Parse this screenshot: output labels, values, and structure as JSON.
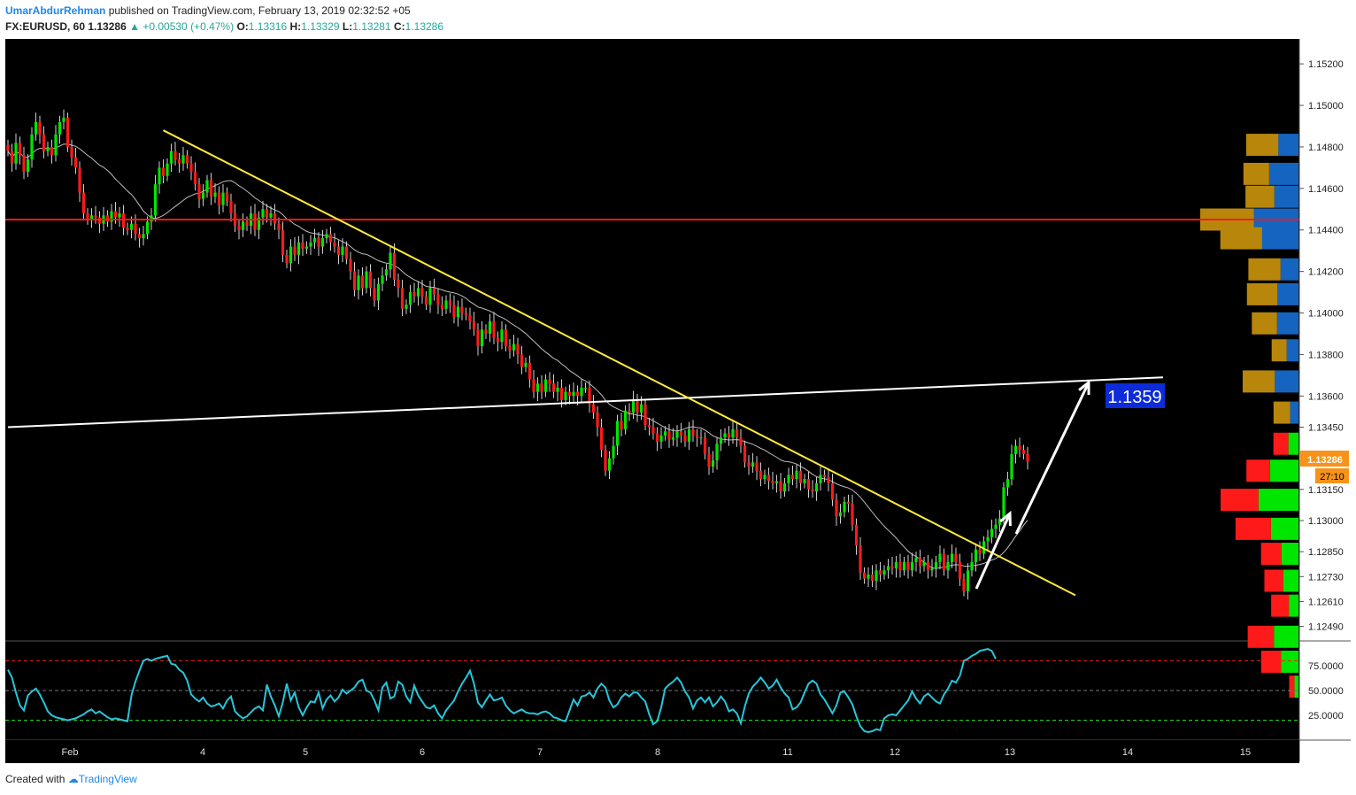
{
  "header": {
    "author": "UmarAbdurRehman",
    "published": "published on TradingView.com, February 13, 2019 02:32:52 +05",
    "symbol": "FX:EURUSD, 60",
    "last": "1.13286",
    "change_arrow": "▲",
    "change": "+0.00530 (+0.47%)",
    "o_label": "O:",
    "o_val": "1.13316",
    "h_label": "H:",
    "h_val": "1.13329",
    "l_label": "L:",
    "l_val": "1.13281",
    "c_label": "C:",
    "c_val": "1.13286"
  },
  "footer": {
    "created": "Created with",
    "brand": "TradingView"
  },
  "colors": {
    "background": "#000000",
    "up": "#00e600",
    "down": "#ff1a1a",
    "trendline": "#ffeb3b",
    "resistance": "#ff1a1a",
    "support_line": "#ffffff",
    "ma": "#bdbdbd",
    "rsi": "#26c6da",
    "vp_up": "#b8860b",
    "vp_down": "#1565c0",
    "last_price_tag": "#f7931a",
    "target_box": "#0d2bd8"
  },
  "annotations": {
    "target_label": "1.1359",
    "last_price_label": "1.13286",
    "countdown_label": "27:10"
  },
  "chart_data": {
    "type": "candlestick",
    "symbol": "FX:EURUSD",
    "interval": "60",
    "x_ticks": [
      "Feb",
      "4",
      "5",
      "6",
      "7",
      "8",
      "11",
      "12",
      "13",
      "14",
      "15"
    ],
    "price_ticks": [
      "1.15200",
      "1.15000",
      "1.14800",
      "1.14600",
      "1.14400",
      "1.14200",
      "1.14000",
      "1.13800",
      "1.13600",
      "1.13450",
      "1.13150",
      "1.13000",
      "1.12850",
      "1.12730",
      "1.12610",
      "1.12490"
    ],
    "price_range": [
      1.1242,
      1.1532
    ],
    "rsi_ticks": [
      "75.0000",
      "50.0000",
      "25.0000"
    ],
    "rsi_range": [
      0,
      100
    ],
    "rsi_levels": [
      80,
      50,
      20
    ],
    "closes": [
      1.1478,
      1.1472,
      1.1482,
      1.1476,
      1.1468,
      1.1474,
      1.1486,
      1.1492,
      1.1486,
      1.1478,
      1.148,
      1.1476,
      1.1486,
      1.1492,
      1.1494,
      1.148,
      1.1475,
      1.147,
      1.1458,
      1.1448,
      1.1445,
      1.1447,
      1.1446,
      1.1443,
      1.1447,
      1.1444,
      1.1449,
      1.1446,
      1.1448,
      1.1441,
      1.144,
      1.1443,
      1.1438,
      1.1436,
      1.1438,
      1.1444,
      1.1447,
      1.1462,
      1.147,
      1.1466,
      1.1472,
      1.1478,
      1.1474,
      1.1472,
      1.1476,
      1.1472,
      1.1468,
      1.1462,
      1.1455,
      1.1458,
      1.1464,
      1.1456,
      1.1458,
      1.1452,
      1.1458,
      1.1454,
      1.1448,
      1.1442,
      1.144,
      1.1444,
      1.1442,
      1.1448,
      1.144,
      1.1446,
      1.145,
      1.1446,
      1.1448,
      1.1443,
      1.144,
      1.1428,
      1.1424,
      1.1432,
      1.1428,
      1.1434,
      1.1431,
      1.1432,
      1.1434,
      1.1436,
      1.1432,
      1.1436,
      1.1438,
      1.1434,
      1.1432,
      1.1428,
      1.1432,
      1.1426,
      1.142,
      1.1411,
      1.1418,
      1.1412,
      1.142,
      1.1412,
      1.1406,
      1.1414,
      1.1418,
      1.1421,
      1.1429,
      1.1416,
      1.1412,
      1.1402,
      1.1404,
      1.141,
      1.1408,
      1.1412,
      1.1408,
      1.1404,
      1.1412,
      1.1409,
      1.1404,
      1.1402,
      1.1406,
      1.1404,
      1.1398,
      1.1403,
      1.14,
      1.1399,
      1.1396,
      1.1392,
      1.1384,
      1.1392,
      1.139,
      1.1396,
      1.1388,
      1.1386,
      1.1392,
      1.1384,
      1.1382,
      1.1385,
      1.138,
      1.1374,
      1.1376,
      1.1368,
      1.1362,
      1.1366,
      1.1362,
      1.1368,
      1.1366,
      1.1362,
      1.1364,
      1.1358,
      1.1362,
      1.136,
      1.1362,
      1.136,
      1.1364,
      1.1364,
      1.1356,
      1.1352,
      1.1345,
      1.1334,
      1.1324,
      1.133,
      1.1336,
      1.1348,
      1.1344,
      1.1353,
      1.1352,
      1.1358,
      1.1352,
      1.1356,
      1.1346,
      1.1345,
      1.1342,
      1.1338,
      1.1341,
      1.1343,
      1.1339,
      1.134,
      1.1343,
      1.1341,
      1.1338,
      1.1344,
      1.1341,
      1.134,
      1.134,
      1.1332,
      1.1326,
      1.1329,
      1.1337,
      1.134,
      1.1342,
      1.134,
      1.1344,
      1.134,
      1.1336,
      1.1328,
      1.1326,
      1.1328,
      1.1324,
      1.132,
      1.1322,
      1.1319,
      1.1318,
      1.1319,
      1.1314,
      1.1318,
      1.1322,
      1.132,
      1.1324,
      1.1318,
      1.132,
      1.1315,
      1.1314,
      1.1318,
      1.1322,
      1.1321,
      1.1318,
      1.131,
      1.1302,
      1.1304,
      1.1309,
      1.1308,
      1.1298,
      1.1288,
      1.1275,
      1.1272,
      1.1274,
      1.1271,
      1.1276,
      1.1274,
      1.1276,
      1.1278,
      1.1277,
      1.128,
      1.1276,
      1.128,
      1.1276,
      1.128,
      1.1282,
      1.1278,
      1.128,
      1.1276,
      1.1277,
      1.128,
      1.1284,
      1.1276,
      1.128,
      1.1284,
      1.128,
      1.1272,
      1.1266,
      1.1276,
      1.128,
      1.1286,
      1.1284,
      1.129,
      1.1292,
      1.1296,
      1.1298,
      1.1301,
      1.1316,
      1.132,
      1.1332,
      1.1336,
      1.1334,
      1.1332,
      1.13286
    ],
    "rsi": [
      71,
      63,
      48,
      35,
      30,
      45,
      49,
      52,
      46,
      38,
      29,
      25,
      23,
      22,
      21,
      20,
      21,
      22,
      24,
      26,
      29,
      31,
      27,
      29,
      26,
      23,
      21,
      22,
      21,
      20,
      19,
      45,
      59,
      70,
      80,
      82,
      80,
      82,
      83,
      84,
      85,
      77,
      76,
      71,
      68,
      60,
      46,
      42,
      39,
      43,
      37,
      34,
      35,
      37,
      32,
      40,
      44,
      29,
      25,
      22,
      24,
      28,
      32,
      34,
      30,
      56,
      44,
      35,
      24,
      38,
      57,
      40,
      48,
      33,
      25,
      33,
      39,
      38,
      48,
      32,
      41,
      45,
      39,
      43,
      51,
      47,
      50,
      53,
      59,
      61,
      50,
      48,
      40,
      30,
      53,
      58,
      42,
      44,
      59,
      56,
      44,
      38,
      55,
      45,
      39,
      33,
      32,
      35,
      27,
      22,
      30,
      35,
      40,
      49,
      57,
      63,
      70,
      57,
      38,
      33,
      40,
      46,
      40,
      41,
      43,
      35,
      30,
      27,
      29,
      31,
      28,
      27,
      27,
      26,
      28,
      29,
      27,
      23,
      22,
      20,
      19,
      30,
      41,
      35,
      44,
      45,
      48,
      43,
      52,
      57,
      53,
      40,
      33,
      36,
      43,
      47,
      44,
      48,
      48,
      43,
      39,
      26,
      16,
      19,
      33,
      52,
      56,
      59,
      63,
      58,
      49,
      43,
      32,
      40,
      43,
      38,
      43,
      34,
      38,
      44,
      39,
      29,
      31,
      27,
      17,
      34,
      47,
      54,
      58,
      63,
      58,
      52,
      55,
      61,
      53,
      47,
      43,
      31,
      33,
      38,
      48,
      57,
      60,
      57,
      46,
      41,
      34,
      27,
      35,
      48,
      49,
      43,
      36,
      24,
      14,
      9,
      8,
      9,
      11,
      10,
      22,
      25,
      26,
      25,
      30,
      35,
      40,
      49,
      42,
      37,
      44,
      47,
      43,
      39,
      37,
      46,
      52,
      60,
      58,
      65,
      80,
      82,
      85,
      87,
      90,
      91,
      92,
      90,
      82
    ],
    "trendline": {
      "from_index": 39,
      "from_price": 1.1488,
      "to_index": 268,
      "to_price": 1.1264
    },
    "support_line": {
      "from_index": 0,
      "from_price": 1.1345,
      "to_index": 290,
      "to_price": 1.1369
    },
    "resistance": 1.1445,
    "moving_average": true,
    "target": 1.1359,
    "volume_profile": [
      {
        "price": 1.1481,
        "up": 60,
        "down": 46
      },
      {
        "price": 1.1467,
        "up": 48,
        "down": 67
      },
      {
        "price": 1.1456,
        "up": 54,
        "down": 55
      },
      {
        "price": 1.1445,
        "up": 100,
        "down": 102
      },
      {
        "price": 1.1436,
        "up": 78,
        "down": 83
      },
      {
        "price": 1.1421,
        "up": 60,
        "down": 41
      },
      {
        "price": 1.1409,
        "up": 57,
        "down": 48
      },
      {
        "price": 1.1395,
        "up": 47,
        "down": 49
      },
      {
        "price": 1.1382,
        "up": 28,
        "down": 27
      },
      {
        "price": 1.1367,
        "up": 60,
        "down": 54
      },
      {
        "price": 1.1352,
        "up": 31,
        "down": 19
      },
      {
        "price": 1.1337,
        "up": 28,
        "down": 23
      },
      {
        "price": 1.1324,
        "up": 44,
        "down": 65
      },
      {
        "price": 1.131,
        "up": 71,
        "down": 91
      },
      {
        "price": 1.1296,
        "up": 66,
        "down": 63
      },
      {
        "price": 1.1284,
        "up": 38,
        "down": 39
      },
      {
        "price": 1.1271,
        "up": 35,
        "down": 35
      },
      {
        "price": 1.1259,
        "up": 33,
        "down": 22
      },
      {
        "price": 1.1244,
        "up": 49,
        "down": 56
      },
      {
        "price": 1.1232,
        "up": 37,
        "down": 40
      },
      {
        "price": 1.122,
        "up": 10,
        "down": 9
      }
    ],
    "volume_profile_units": "relative"
  }
}
